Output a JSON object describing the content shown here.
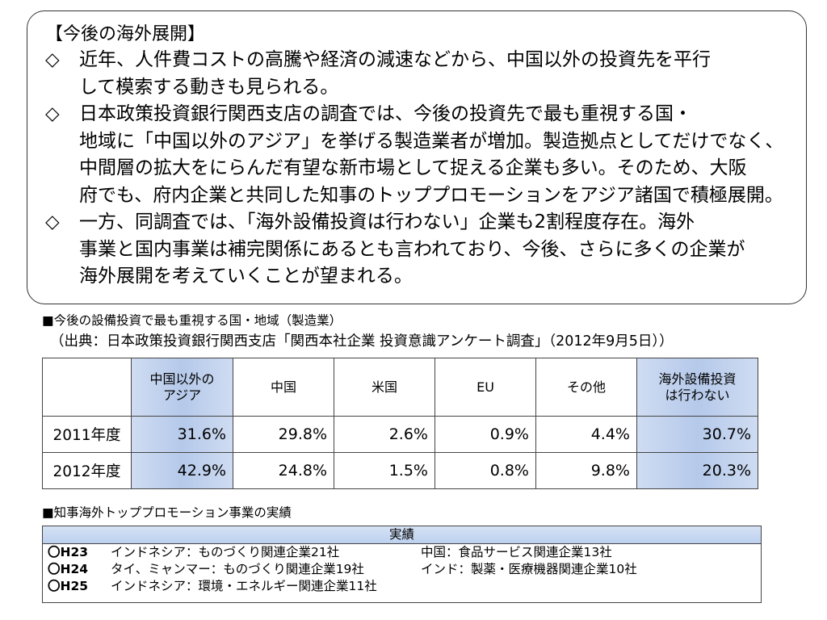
{
  "outlook": {
    "title": "【今後の海外展開】",
    "bullets": [
      {
        "mark": "◇",
        "text": "近年、人件費コストの高騰や経済の減速などから、中国以外の投資先を平行\nして模索する動きも見られる。"
      },
      {
        "mark": "◇",
        "text": "日本政策投資銀行関西支店の調査では、今後の投資先で最も重視する国・\n地域に「中国以外のアジア」を挙げる製造業者が増加。製造拠点としてだけでなく、\n中間層の拡大をにらんだ有望な新市場として捉える企業も多い。そのため、大阪\n府でも、府内企業と共同した知事のトッププロモーションをアジア諸国で積極展開。"
      },
      {
        "mark": "◇",
        "text": "一方、同調査では、「海外設備投資は行わない」企業も2割程度存在。海外\n事業と国内事業は補完関係にあるとも言われており、今後、さらに多くの企業が\n海外展開を考えていくことが望まれる。"
      }
    ]
  },
  "table_section": {
    "caption": "■今後の設備投資で最も重視する国・地域（製造業）",
    "source": "（出典：日本政策投資銀行関西支店「関西本社企業 投資意識アンケート調査」（2012年9月5日））",
    "headers": [
      "",
      "中国以外の\nアジア",
      "中国",
      "米国",
      "EU",
      "その他",
      "海外設備投資\nは行わない"
    ],
    "rows": [
      {
        "label": "2011年度",
        "values": [
          "31.6%",
          "29.8%",
          "2.6%",
          "0.9%",
          "4.4%",
          "30.7%"
        ]
      },
      {
        "label": "2012年度",
        "values": [
          "42.9%",
          "24.8%",
          "1.5%",
          "0.8%",
          "9.8%",
          "20.3%"
        ]
      }
    ]
  },
  "results_section": {
    "caption": "■知事海外トッププロモーション事業の実績",
    "header": "実績",
    "rows": [
      {
        "year": "〇H23",
        "item1": "インドネシア：ものづくり関連企業21社",
        "item2": "中国：食品サービス関連企業13社"
      },
      {
        "year": "〇H24",
        "item1": "タイ、ミャンマー：ものづくり関連企業19社",
        "item2": "インド：製薬・医療機器関連企業10社"
      },
      {
        "year": "〇H25",
        "item1": "インドネシア：環境・エネルギー関連企業11社",
        "item2": ""
      }
    ]
  },
  "colors": {
    "highlight_column": "#b5c9ea",
    "results_header": "#bcd0ee"
  }
}
